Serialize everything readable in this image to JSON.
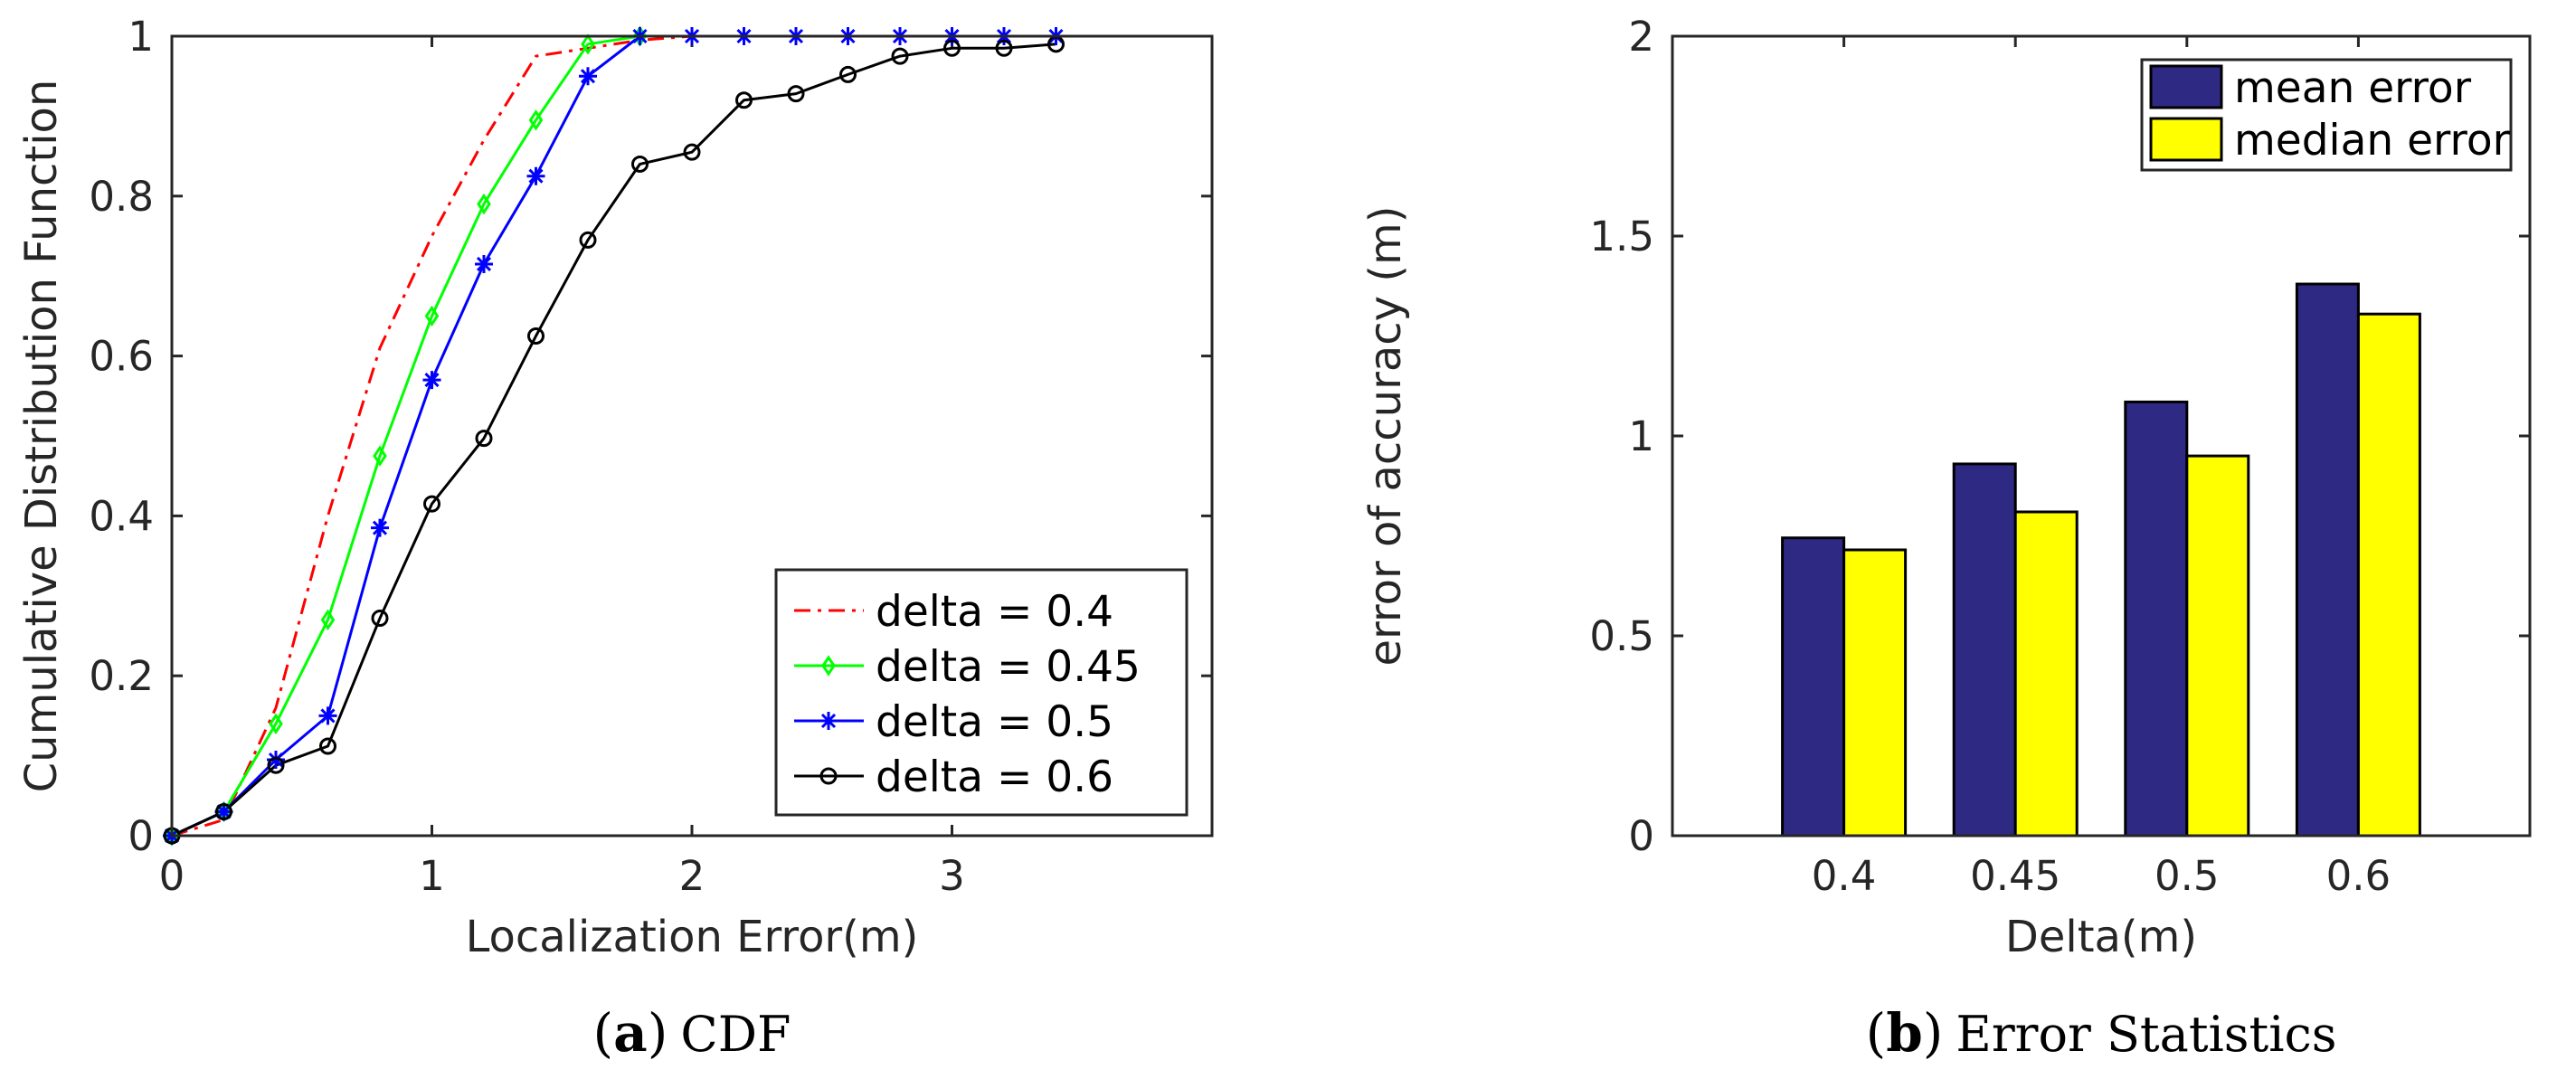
{
  "chart_data": [
    {
      "type": "line",
      "caption_letter": "a",
      "caption_text": "CDF",
      "xlabel": "Localization Error(m)",
      "ylabel": "Cumulative Distribution Function",
      "xlim": [
        0,
        4
      ],
      "ylim": [
        0,
        1
      ],
      "xticks": [
        "0",
        "1",
        "2",
        "3"
      ],
      "yticks": [
        "0",
        "0.2",
        "0.4",
        "0.6",
        "0.8",
        "1"
      ],
      "xtick_values": [
        0,
        1,
        2,
        3
      ],
      "ytick_values": [
        0,
        0.2,
        0.4,
        0.6,
        0.8,
        1
      ],
      "legend_position": "bottom-right",
      "series": [
        {
          "name": "delta = 0.4",
          "color": "#ff0000",
          "style": "dash-dot",
          "marker": "none",
          "x": [
            0,
            0.2,
            0.4,
            0.6,
            0.8,
            1.0,
            1.2,
            1.4,
            1.6,
            1.8,
            2.0,
            2.2,
            2.4,
            2.6,
            2.8,
            3.0,
            3.2,
            3.4
          ],
          "y": [
            0,
            0.02,
            0.16,
            0.4,
            0.61,
            0.75,
            0.87,
            0.975,
            0.985,
            0.995,
            1,
            1,
            1,
            1,
            1,
            1,
            1,
            1
          ]
        },
        {
          "name": "delta = 0.45",
          "color": "#00ff00",
          "style": "solid",
          "marker": "diamond",
          "x": [
            0,
            0.2,
            0.4,
            0.6,
            0.8,
            1.0,
            1.2,
            1.4,
            1.6,
            1.8
          ],
          "y": [
            0,
            0.03,
            0.14,
            0.27,
            0.475,
            0.65,
            0.79,
            0.895,
            0.99,
            1
          ]
        },
        {
          "name": "delta = 0.5",
          "color": "#0000ff",
          "style": "solid",
          "marker": "star",
          "x": [
            0,
            0.2,
            0.4,
            0.6,
            0.8,
            1.0,
            1.2,
            1.4,
            1.6,
            1.8,
            2.0,
            2.2,
            2.4,
            2.6,
            2.8,
            3.0,
            3.2,
            3.4
          ],
          "y": [
            0,
            0.03,
            0.095,
            0.15,
            0.385,
            0.57,
            0.715,
            0.825,
            0.95,
            1,
            1,
            1,
            1,
            1,
            1,
            1,
            1,
            1
          ]
        },
        {
          "name": "delta = 0.6",
          "color": "#000000",
          "style": "solid",
          "marker": "circle",
          "x": [
            0,
            0.2,
            0.4,
            0.6,
            0.8,
            1.0,
            1.2,
            1.4,
            1.6,
            1.8,
            2.0,
            2.2,
            2.4,
            2.6,
            2.8,
            3.0,
            3.2,
            3.4
          ],
          "y": [
            0,
            0.03,
            0.088,
            0.112,
            0.272,
            0.415,
            0.497,
            0.625,
            0.745,
            0.84,
            0.855,
            0.92,
            0.928,
            0.952,
            0.975,
            0.985,
            0.985,
            0.99
          ]
        }
      ]
    },
    {
      "type": "bar",
      "caption_letter": "b",
      "caption_text": "Error Statistics",
      "xlabel": "Delta(m)",
      "ylabel": "error of accuracy (m)",
      "ylim": [
        0,
        2
      ],
      "yticks": [
        "0",
        "0.5",
        "1",
        "1.5",
        "2"
      ],
      "ytick_values": [
        0,
        0.5,
        1,
        1.5,
        2
      ],
      "categories": [
        "0.4",
        "0.45",
        "0.5",
        "0.6"
      ],
      "legend_position": "top-right",
      "series": [
        {
          "name": "mean error",
          "color": "#2e2a84",
          "values": [
            0.745,
            0.93,
            1.085,
            1.38
          ]
        },
        {
          "name": "median error",
          "color": "#ffff00",
          "values": [
            0.715,
            0.81,
            0.95,
            1.305
          ]
        }
      ]
    }
  ]
}
